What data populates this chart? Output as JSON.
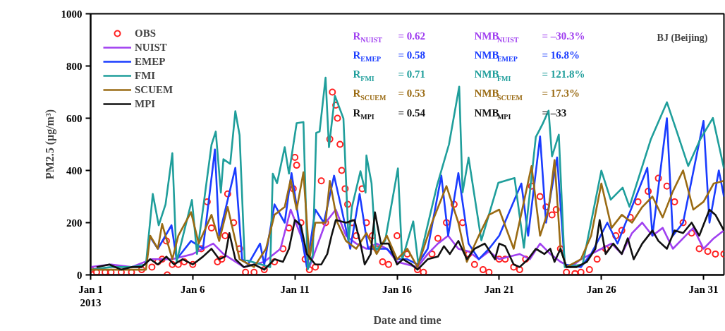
{
  "chart_data": {
    "type": "line",
    "title": "BJ (Beijing)",
    "xlabel": "Date and time",
    "ylabel": "PM2.5 (μg/m³)",
    "xlim": [
      "2013-01-01T00:00",
      "2013-02-01T00:00"
    ],
    "ylim": [
      0,
      1000
    ],
    "xticks": [
      {
        "value": "2013-01-01",
        "label": "Jan 1\n2013"
      },
      {
        "value": "2013-01-06",
        "label": "Jan 6"
      },
      {
        "value": "2013-01-11",
        "label": "Jan 11"
      },
      {
        "value": "2013-01-16",
        "label": "Jan 16"
      },
      {
        "value": "2013-01-21",
        "label": "Jan 21"
      },
      {
        "value": "2013-01-26",
        "label": "Jan 26"
      },
      {
        "value": "2013-01-31",
        "label": "Jan 31"
      }
    ],
    "yticks": [
      0,
      200,
      400,
      600,
      800,
      1000
    ],
    "legend": "top left",
    "grid": false,
    "line_style": "solid",
    "series": [
      {
        "name": "OBS",
        "type": "scatter",
        "marker": "circle",
        "color": "#ff2020",
        "x": [
          "2013-01-01T00:00",
          "2013-01-01T07:00",
          "2013-01-01T17:00",
          "2013-01-02T00:00",
          "2013-01-02T12:00",
          "2013-01-03T00:00",
          "2013-01-03T12:00",
          "2013-01-04T00:00",
          "2013-01-04T07:00",
          "2013-01-04T12:00",
          "2013-01-04T17:00",
          "2013-01-04T18:00",
          "2013-01-05T00:00",
          "2013-01-05T07:00",
          "2013-01-05T14:00",
          "2013-01-06T00:00",
          "2013-01-06T10:00",
          "2013-01-06T17:00",
          "2013-01-06T22:00",
          "2013-01-07T05:00",
          "2013-01-07T10:00",
          "2013-01-07T14:00",
          "2013-01-07T17:00",
          "2013-01-08T00:00",
          "2013-01-08T07:00",
          "2013-01-08T14:00",
          "2013-01-09T00:00",
          "2013-01-09T12:00",
          "2013-01-10T00:00",
          "2013-01-10T10:00",
          "2013-01-10T17:00",
          "2013-01-10T22:00",
          "2013-01-11T00:00",
          "2013-01-11T02:00",
          "2013-01-11T07:00",
          "2013-01-11T12:00",
          "2013-01-11T17:00",
          "2013-01-12T00:00",
          "2013-01-12T07:00",
          "2013-01-12T12:00",
          "2013-01-12T17:00",
          "2013-01-12T20:00",
          "2013-01-13T00:00",
          "2013-01-13T02:00",
          "2013-01-13T05:00",
          "2013-01-13T07:00",
          "2013-01-13T11:00",
          "2013-01-13T14:00",
          "2013-01-13T19:00",
          "2013-01-14T00:00",
          "2013-01-14T07:00",
          "2013-01-14T12:00",
          "2013-01-14T19:00",
          "2013-01-15T00:00",
          "2013-01-15T07:00",
          "2013-01-15T14:00",
          "2013-01-16T00:00",
          "2013-01-16T12:00",
          "2013-01-17T00:00",
          "2013-01-17T07:00",
          "2013-01-17T17:00",
          "2013-01-18T00:00",
          "2013-01-18T10:00",
          "2013-01-18T19:00",
          "2013-01-19T05:00",
          "2013-01-19T12:00",
          "2013-01-19T19:00",
          "2013-01-20T05:00",
          "2013-01-20T12:00",
          "2013-01-21T00:00",
          "2013-01-21T07:00",
          "2013-01-21T17:00",
          "2013-01-22T00:00",
          "2013-01-22T07:00",
          "2013-01-22T14:00",
          "2013-01-23T00:00",
          "2013-01-23T07:00",
          "2013-01-23T14:00",
          "2013-01-23T19:00",
          "2013-01-24T00:00",
          "2013-01-24T07:00",
          "2013-01-24T17:00",
          "2013-01-25T00:00",
          "2013-01-25T10:00",
          "2013-01-25T19:00",
          "2013-01-26T05:00",
          "2013-01-26T17:00",
          "2013-01-27T00:00",
          "2013-01-27T10:00",
          "2013-01-27T19:00",
          "2013-01-28T07:00",
          "2013-01-28T19:00",
          "2013-01-29T05:00",
          "2013-01-29T14:00",
          "2013-01-30T00:00",
          "2013-01-30T10:00",
          "2013-01-30T19:00",
          "2013-01-31T05:00",
          "2013-01-31T14:00",
          "2013-02-01T00:00"
        ],
        "values": [
          20,
          10,
          10,
          10,
          10,
          10,
          20,
          30,
          50,
          60,
          130,
          0,
          40,
          40,
          50,
          40,
          100,
          280,
          180,
          50,
          60,
          150,
          310,
          200,
          100,
          10,
          10,
          20,
          50,
          100,
          180,
          330,
          450,
          420,
          200,
          60,
          20,
          30,
          360,
          200,
          520,
          700,
          650,
          600,
          500,
          400,
          330,
          270,
          200,
          150,
          330,
          200,
          150,
          100,
          50,
          40,
          150,
          80,
          20,
          10,
          80,
          140,
          200,
          270,
          200,
          80,
          40,
          20,
          10,
          60,
          60,
          30,
          20,
          60,
          340,
          300,
          260,
          230,
          250,
          100,
          10,
          5,
          10,
          20,
          60,
          100,
          150,
          170,
          220,
          280,
          320,
          370,
          340,
          280,
          200,
          160,
          100,
          90,
          80,
          80
        ]
      },
      {
        "name": "NUIST",
        "color": "#a040f0",
        "x": [
          "2013-01-01T00:00",
          "2013-01-02T00:00",
          "2013-01-03T00:00",
          "2013-01-04T00:00",
          "2013-01-05T00:00",
          "2013-01-06T00:00",
          "2013-01-07T00:00",
          "2013-01-07T12:00",
          "2013-01-08T12:00",
          "2013-01-09T12:00",
          "2013-01-10T07:00",
          "2013-01-10T19:00",
          "2013-01-11T07:00",
          "2013-01-11T17:00",
          "2013-01-12T12:00",
          "2013-01-13T00:00",
          "2013-01-13T12:00",
          "2013-01-14T00:00",
          "2013-01-14T12:00",
          "2013-01-15T00:00",
          "2013-01-15T12:00",
          "2013-01-16T00:00",
          "2013-01-17T00:00",
          "2013-01-17T12:00",
          "2013-01-18T00:00",
          "2013-01-18T12:00",
          "2013-01-19T00:00",
          "2013-01-19T12:00",
          "2013-01-20T00:00",
          "2013-01-20T12:00",
          "2013-01-21T00:00",
          "2013-01-21T12:00",
          "2013-01-22T00:00",
          "2013-01-22T12:00",
          "2013-01-23T00:00",
          "2013-01-23T12:00",
          "2013-01-24T00:00",
          "2013-01-24T12:00",
          "2013-01-25T00:00",
          "2013-01-25T12:00",
          "2013-01-26T00:00",
          "2013-01-26T12:00",
          "2013-01-27T00:00",
          "2013-01-27T12:00",
          "2013-01-28T00:00",
          "2013-01-28T12:00",
          "2013-01-29T00:00",
          "2013-01-29T12:00",
          "2013-01-30T00:00",
          "2013-01-30T12:00",
          "2013-01-31T00:00",
          "2013-01-31T12:00",
          "2013-02-01T00:00"
        ],
        "values": [
          30,
          40,
          30,
          60,
          60,
          80,
          120,
          80,
          30,
          50,
          100,
          250,
          150,
          30,
          200,
          250,
          150,
          120,
          100,
          120,
          100,
          50,
          30,
          80,
          120,
          150,
          100,
          90,
          60,
          90,
          60,
          70,
          80,
          60,
          120,
          80,
          50,
          30,
          60,
          80,
          100,
          120,
          80,
          160,
          200,
          150,
          180,
          100,
          140,
          180,
          100,
          140,
          170
        ]
      },
      {
        "name": "EMEP",
        "color": "#1a3cff",
        "x": [
          "2013-01-03T21:00",
          "2013-01-04T07:00",
          "2013-01-04T23:00",
          "2013-01-05T05:00",
          "2013-01-05T22:00",
          "2013-01-06T12:00",
          "2013-01-07T02:00",
          "2013-01-07T07:00",
          "2013-01-08T02:00",
          "2013-01-08T10:00",
          "2013-01-08T17:00",
          "2013-01-09T07:00",
          "2013-01-09T12:00",
          "2013-01-10T00:00",
          "2013-01-10T12:00",
          "2013-01-10T20:00",
          "2013-01-11T05:00",
          "2013-01-11T14:00",
          "2013-01-12T00:00",
          "2013-01-12T10:00",
          "2013-01-12T22:00",
          "2013-01-13T07:00",
          "2013-01-13T17:00",
          "2013-01-14T04:00",
          "2013-01-14T14:00",
          "2013-01-15T00:00",
          "2013-01-15T12:00",
          "2013-01-16T00:00",
          "2013-01-16T12:00",
          "2013-01-17T00:00",
          "2013-01-17T12:00",
          "2013-01-18T04:00",
          "2013-01-18T12:00",
          "2013-01-19T00:00",
          "2013-01-19T12:00",
          "2013-01-20T00:00",
          "2013-01-20T12:00",
          "2013-01-21T00:00",
          "2013-01-22T02:00",
          "2013-01-22T10:00",
          "2013-01-23T00:00",
          "2013-01-23T07:00",
          "2013-01-23T20:00",
          "2013-01-24T05:00",
          "2013-01-25T00:00",
          "2013-01-25T12:00",
          "2013-01-26T07:00",
          "2013-01-26T19:00",
          "2013-01-28T06:00",
          "2013-01-28T12:00",
          "2013-01-29T05:00",
          "2013-01-29T12:00",
          "2013-01-30T00:00",
          "2013-01-31T00:00",
          "2013-01-31T07:00",
          "2013-01-31T18:00",
          "2013-02-01T00:00"
        ],
        "values": [
          150,
          100,
          190,
          60,
          130,
          100,
          480,
          150,
          410,
          60,
          40,
          120,
          40,
          270,
          200,
          390,
          200,
          30,
          250,
          200,
          380,
          250,
          100,
          310,
          100,
          100,
          100,
          60,
          60,
          40,
          100,
          380,
          150,
          390,
          120,
          60,
          100,
          150,
          350,
          150,
          530,
          200,
          450,
          40,
          30,
          80,
          200,
          120,
          410,
          150,
          600,
          150,
          200,
          590,
          200,
          400,
          300
        ]
      },
      {
        "name": "FMI",
        "color": "#1f9e9b",
        "x": [
          "2013-01-01T00:00",
          "2013-01-02T00:00",
          "2013-01-03T00:00",
          "2013-01-03T17:00",
          "2013-01-04T01:00",
          "2013-01-04T08:00",
          "2013-01-04T16:00",
          "2013-01-05T00:00",
          "2013-01-05T05:00",
          "2013-01-05T23:00",
          "2013-01-06T05:00",
          "2013-01-06T22:00",
          "2013-01-07T03:00",
          "2013-01-07T09:00",
          "2013-01-07T12:00",
          "2013-01-07T20:00",
          "2013-01-08T02:00",
          "2013-01-08T07:00",
          "2013-01-08T13:00",
          "2013-01-09T19:00",
          "2013-01-09T22:00",
          "2013-01-10T03:00",
          "2013-01-10T12:00",
          "2013-01-10T17:00",
          "2013-01-11T02:00",
          "2013-01-11T10:00",
          "2013-01-11T15:00",
          "2013-01-11T21:00",
          "2013-01-12T01:00",
          "2013-01-12T05:00",
          "2013-01-12T12:00",
          "2013-01-12T16:00",
          "2013-01-12T23:00",
          "2013-01-13T09:00",
          "2013-01-13T15:00",
          "2013-01-13T19:00",
          "2013-01-14T05:00",
          "2013-01-14T11:00",
          "2013-01-14T12:00",
          "2013-01-14T18:00",
          "2013-01-14T23:00",
          "2013-01-15T10:00",
          "2013-01-16T01:00",
          "2013-01-16T06:00",
          "2013-01-16T19:00",
          "2013-01-17T01:00",
          "2013-01-17T23:00",
          "2013-01-18T13:00",
          "2013-01-19T01:00",
          "2013-01-19T05:00",
          "2013-01-19T12:00",
          "2013-01-20T03:00",
          "2013-01-20T23:00",
          "2013-01-21T18:00",
          "2013-01-22T05:00",
          "2013-01-22T19:00",
          "2013-01-23T03:00",
          "2013-01-23T10:00",
          "2013-01-23T14:00",
          "2013-01-23T22:00",
          "2013-01-24T05:00",
          "2013-01-25T02:00",
          "2013-01-26T00:00",
          "2013-01-26T11:00",
          "2013-01-27T01:00",
          "2013-01-27T09:00",
          "2013-01-28T10:00",
          "2013-01-29T05:00",
          "2013-01-29T16:00",
          "2013-01-30T06:00",
          "2013-01-30T20:00",
          "2013-01-31T11:00",
          "2013-02-01T00:00"
        ],
        "values": [
          20,
          30,
          30,
          40,
          310,
          190,
          270,
          466,
          50,
          287,
          80,
          498,
          549,
          315,
          443,
          425,
          627,
          535,
          58,
          30,
          388,
          351,
          489,
          388,
          581,
          585,
          21,
          76,
          544,
          549,
          755,
          489,
          686,
          599,
          131,
          260,
          397,
          315,
          457,
          351,
          94,
          131,
          408,
          58,
          205,
          40,
          343,
          500,
          721,
          316,
          449,
          132,
          353,
          371,
          104,
          528,
          578,
          629,
          454,
          537,
          30,
          40,
          399,
          288,
          334,
          261,
          518,
          661,
          555,
          417,
          518,
          601,
          408
        ]
      },
      {
        "name": "SCUEM",
        "color": "#9a6b14",
        "x": [
          "2013-01-01T00:00",
          "2013-01-02T00:00",
          "2013-01-03T00:00",
          "2013-01-03T17:00",
          "2013-01-03T22:00",
          "2013-01-04T07:00",
          "2013-01-04T12:00",
          "2013-01-05T00:00",
          "2013-01-05T07:00",
          "2013-01-05T22:00",
          "2013-01-06T07:00",
          "2013-01-06T22:00",
          "2013-01-07T07:00",
          "2013-01-07T17:00",
          "2013-01-08T07:00",
          "2013-01-09T00:00",
          "2013-01-09T14:00",
          "2013-01-10T00:00",
          "2013-01-10T12:00",
          "2013-01-10T19:00",
          "2013-01-11T02:00",
          "2013-01-11T10:00",
          "2013-01-11T17:00",
          "2013-01-12T00:00",
          "2013-01-12T12:00",
          "2013-01-12T17:00",
          "2013-01-13T02:00",
          "2013-01-13T12:00",
          "2013-01-14T00:00",
          "2013-01-14T12:00",
          "2013-01-15T00:00",
          "2013-01-15T12:00",
          "2013-01-16T00:00",
          "2013-01-16T12:00",
          "2013-01-17T00:00",
          "2013-01-17T17:00",
          "2013-01-18T10:00",
          "2013-01-19T00:00",
          "2013-01-19T10:00",
          "2013-01-20T00:00",
          "2013-01-20T12:00",
          "2013-01-21T00:00",
          "2013-01-21T17:00",
          "2013-01-22T05:00",
          "2013-01-22T14:00",
          "2013-01-23T00:00",
          "2013-01-23T10:00",
          "2013-01-23T17:00",
          "2013-01-24T00:00",
          "2013-01-24T07:00",
          "2013-01-25T00:00",
          "2013-01-25T12:00",
          "2013-01-26T00:00",
          "2013-01-26T12:00",
          "2013-01-27T00:00",
          "2013-01-27T12:00",
          "2013-01-28T00:00",
          "2013-01-28T12:00",
          "2013-01-29T00:00",
          "2013-01-29T12:00",
          "2013-01-30T00:00",
          "2013-01-30T12:00",
          "2013-01-31T00:00",
          "2013-01-31T12:00",
          "2013-02-01T00:00"
        ],
        "values": [
          20,
          20,
          20,
          20,
          150,
          100,
          195,
          60,
          150,
          240,
          120,
          230,
          130,
          260,
          60,
          30,
          100,
          230,
          260,
          365,
          250,
          393,
          60,
          200,
          200,
          360,
          200,
          130,
          100,
          160,
          80,
          150,
          60,
          100,
          30,
          200,
          340,
          200,
          50,
          150,
          230,
          250,
          100,
          280,
          417,
          150,
          250,
          440,
          100,
          30,
          60,
          150,
          350,
          180,
          230,
          200,
          260,
          300,
          220,
          320,
          400,
          250,
          280,
          350,
          360
        ]
      },
      {
        "name": "MPI",
        "color": "#111111",
        "x": [
          "2013-01-01T07:00",
          "2013-01-01T22:00",
          "2013-01-02T12:00",
          "2013-01-03T00:00",
          "2013-01-03T12:00",
          "2013-01-03T22:00",
          "2013-01-04T07:00",
          "2013-01-04T17:00",
          "2013-01-05T02:00",
          "2013-01-05T12:00",
          "2013-01-06T00:00",
          "2013-01-06T12:00",
          "2013-01-06T22:00",
          "2013-01-07T07:00",
          "2013-01-07T14:00",
          "2013-01-07T19:00",
          "2013-01-08T02:00",
          "2013-01-08T12:00",
          "2013-01-09T00:00",
          "2013-01-09T12:00",
          "2013-01-10T00:00",
          "2013-01-10T10:00",
          "2013-01-10T17:00",
          "2013-01-11T00:00",
          "2013-01-11T07:00",
          "2013-01-11T14:00",
          "2013-01-12T00:00",
          "2013-01-12T07:00",
          "2013-01-12T14:00",
          "2013-01-12T19:00",
          "2013-01-13T00:00",
          "2013-01-13T12:00",
          "2013-01-13T22:00",
          "2013-01-14T05:00",
          "2013-01-14T10:00",
          "2013-01-14T17:00",
          "2013-01-14T22:00",
          "2013-01-15T05:00",
          "2013-01-15T14:00",
          "2013-01-16T00:00",
          "2013-01-16T07:00",
          "2013-01-16T17:00",
          "2013-01-17T00:00",
          "2013-01-17T12:00",
          "2013-01-18T00:00",
          "2013-01-18T07:00",
          "2013-01-18T14:00",
          "2013-01-19T00:00",
          "2013-01-19T10:00",
          "2013-01-19T19:00",
          "2013-01-20T07:00",
          "2013-01-20T19:00",
          "2013-01-21T00:00",
          "2013-01-21T07:00",
          "2013-01-21T17:00",
          "2013-01-22T00:00",
          "2013-01-22T10:00",
          "2013-01-22T19:00",
          "2013-01-23T05:00",
          "2013-01-23T12:00",
          "2013-01-23T17:00",
          "2013-01-24T00:00",
          "2013-01-24T07:00",
          "2013-01-24T19:00",
          "2013-01-25T07:00",
          "2013-01-25T17:00",
          "2013-01-25T22:00",
          "2013-01-26T05:00",
          "2013-01-26T14:00",
          "2013-01-27T00:00",
          "2013-01-27T07:00",
          "2013-01-27T14:00",
          "2013-01-28T00:00",
          "2013-01-28T12:00",
          "2013-01-28T19:00",
          "2013-01-29T05:00",
          "2013-01-29T14:00",
          "2013-01-30T00:00",
          "2013-01-30T10:00",
          "2013-01-30T19:00",
          "2013-01-31T07:00",
          "2013-01-31T14:00",
          "2013-02-01T00:00"
        ],
        "values": [
          30,
          40,
          20,
          30,
          30,
          60,
          40,
          70,
          40,
          60,
          40,
          70,
          100,
          60,
          70,
          160,
          60,
          30,
          40,
          20,
          60,
          50,
          100,
          210,
          190,
          80,
          40,
          40,
          80,
          150,
          210,
          200,
          210,
          120,
          40,
          80,
          240,
          120,
          120,
          40,
          60,
          40,
          20,
          60,
          70,
          110,
          80,
          130,
          60,
          100,
          120,
          60,
          120,
          110,
          40,
          30,
          60,
          100,
          80,
          100,
          50,
          100,
          30,
          30,
          50,
          100,
          210,
          80,
          120,
          80,
          140,
          60,
          120,
          170,
          130,
          100,
          170,
          160,
          200,
          150,
          250,
          230,
          170
        ]
      }
    ],
    "annotations": [
      "R$_{NUIST}$ = 0.62",
      "R$_{EMEP}$ = 0.58",
      "R$_{FMI}$ = 0.71",
      "R$_{SCUEM}$ = 0.53",
      "R$_{MPI}$ = 0.54",
      "NMB$_{NUIST}$ = –30.3%",
      "NMB$_{EMEP}$ = 16.8%",
      "NMB$_{FMI}$ = 121.8%",
      "NMB$_{SCUEM}$ = 17.3%",
      "NMB$_{MPI}$ = –33"
    ]
  }
}
